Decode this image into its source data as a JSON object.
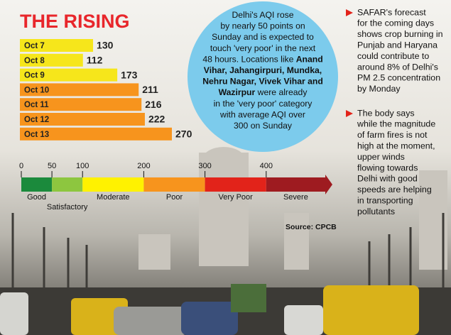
{
  "chart_data": {
    "type": "bar",
    "title": "THE RISING",
    "categories": [
      "Oct 7",
      "Oct 8",
      "Oct 9",
      "Oct 10",
      "Oct 11",
      "Oct 12",
      "Oct 13"
    ],
    "values": [
      130,
      112,
      173,
      211,
      216,
      222,
      270
    ],
    "colors": [
      "#f6e61b",
      "#f6e61b",
      "#f6e61b",
      "#f7941d",
      "#f7941d",
      "#f7941d",
      "#f7941d"
    ]
  },
  "bubble": [
    [
      {
        "text": "Delhi's AQI rose",
        "bold": false
      }
    ],
    [
      {
        "text": "by nearly 50 points on",
        "bold": false
      }
    ],
    [
      {
        "text": "Sunday and is expected to",
        "bold": false
      }
    ],
    [
      {
        "text": "touch 'very poor' in the next",
        "bold": false
      }
    ],
    [
      {
        "text": "48 hours. Locations like ",
        "bold": false
      },
      {
        "text": "Anand",
        "bold": true
      }
    ],
    [
      {
        "text": "Vihar, Jahangirpuri, Mundka,",
        "bold": true
      }
    ],
    [
      {
        "text": "Nehru Nagar, Vivek Vihar and",
        "bold": true
      }
    ],
    [
      {
        "text": "Wazirpur",
        "bold": true
      },
      {
        "text": " were already",
        "bold": false
      }
    ],
    [
      {
        "text": "in the 'very poor' category",
        "bold": false
      }
    ],
    [
      {
        "text": "with average AQI over",
        "bold": false
      }
    ],
    [
      {
        "text": "300 on Sunday",
        "bold": false
      }
    ]
  ],
  "aqi_scale": {
    "ticks": [
      0,
      50,
      100,
      200,
      300,
      400
    ],
    "bands": [
      {
        "label": "Good",
        "color": "#1b8a3c"
      },
      {
        "label": "Satisfactory",
        "color": "#8dc63f"
      },
      {
        "label": "Moderate",
        "color": "#fff200"
      },
      {
        "label": "Poor",
        "color": "#f7941d"
      },
      {
        "label": "Very Poor",
        "color": "#e2231a"
      },
      {
        "label": "Severe",
        "color": "#9e1b20"
      }
    ],
    "source": "Source: CPCB"
  },
  "notes": [
    [
      "SAFAR's forecast",
      "for the coming days",
      "shows crop burning in",
      "Punjab and Haryana",
      "could contribute to",
      "around 8% of Delhi's",
      "PM 2.5 concentration",
      "by Monday"
    ],
    [
      "The body says",
      "while the magnitude",
      "of farm fires is not",
      "high at the moment,",
      "upper winds",
      "flowing towards",
      "Delhi with good",
      "speeds are helping",
      "in transporting",
      "pollutants"
    ]
  ]
}
